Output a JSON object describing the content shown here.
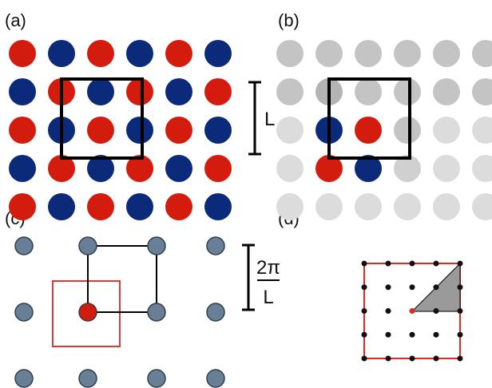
{
  "panels": {
    "a": {
      "label": "(a)",
      "pattern": "checkerboard",
      "colors": {
        "odd": "#d41c0e",
        "even": "#0b2a7a"
      }
    },
    "b": {
      "label": "(b)",
      "scale_label": "L",
      "colors": {
        "gray_dark": "#c4c4c4",
        "gray_light": "#dcdcdc",
        "red": "#d41c0e",
        "blue": "#0b2a7a"
      }
    },
    "c": {
      "label": "(c)",
      "scale_label_top": "2π",
      "scale_label_bottom": "L",
      "colors": {
        "node": "#687f96",
        "origin": "#d41c0e",
        "zone": "#d93a33"
      }
    },
    "d": {
      "label": "(d)",
      "colors": {
        "point": "#111111",
        "border": "#e02a1e",
        "wedge": "#9a9a9a",
        "origin": "#e02a1e"
      }
    }
  }
}
